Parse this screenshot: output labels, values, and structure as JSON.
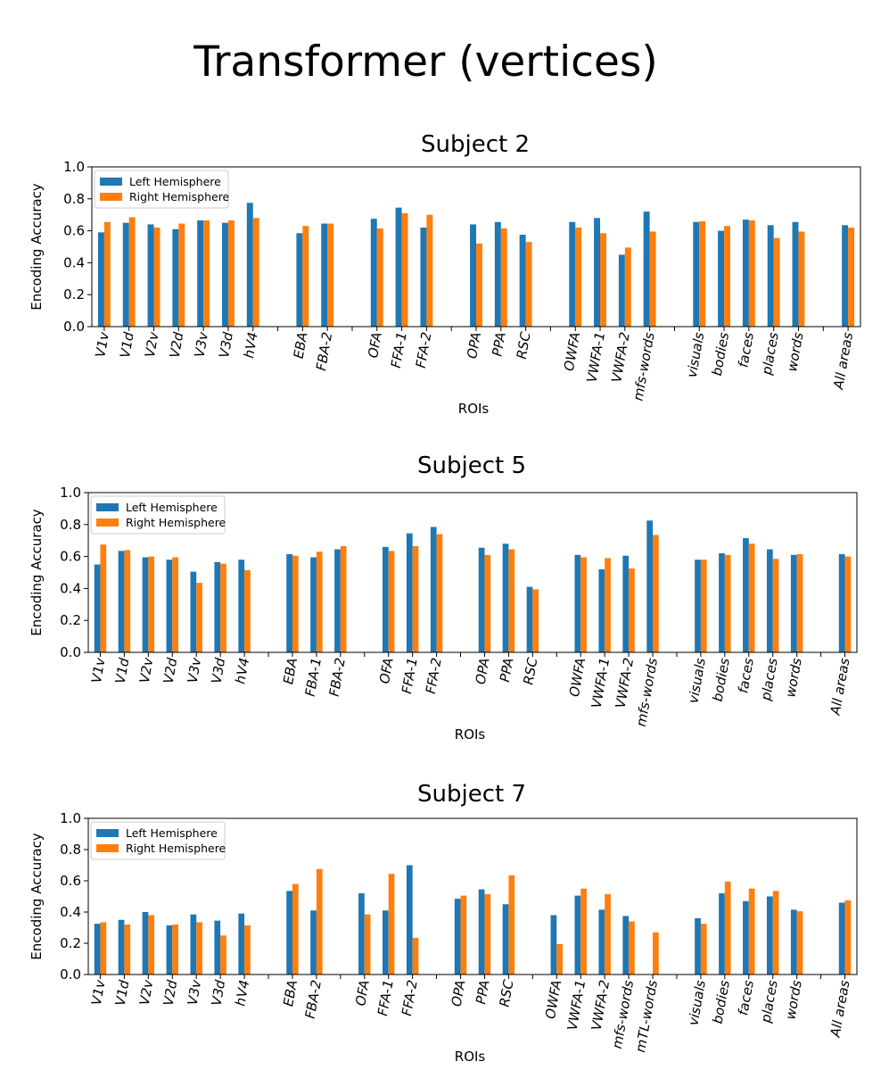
{
  "figure_title": "Transformer (vertices)",
  "colors": {
    "left": "#1f77b4",
    "right": "#ff7f0e"
  },
  "chart_data": [
    {
      "type": "bar",
      "title": "Subject 2",
      "xlabel": "ROIs",
      "ylabel": "Encoding Accuracy",
      "ylim": [
        0,
        1
      ],
      "yticks": [
        "0.0",
        "0.2",
        "0.4",
        "0.6",
        "0.8",
        "1.0"
      ],
      "legend_position": "top-left",
      "categories": [
        "V1v",
        "V1d",
        "V2v",
        "V2d",
        "V3v",
        "V3d",
        "hV4",
        "",
        "EBA",
        "FBA-2",
        "",
        "OFA",
        "FFA-1",
        "FFA-2",
        "",
        "OPA",
        "PPA",
        "RSC",
        "",
        "OWFA",
        "VWFA-1",
        "VWFA-2",
        "mfs-words",
        "",
        "visuals",
        "bodies",
        "faces",
        "places",
        "words",
        "",
        "All areas"
      ],
      "series": [
        {
          "name": "Left Hemisphere",
          "values": [
            0.59,
            0.65,
            0.64,
            0.61,
            0.665,
            0.65,
            0.775,
            null,
            0.585,
            0.645,
            null,
            0.675,
            0.745,
            0.62,
            null,
            0.64,
            0.655,
            0.575,
            null,
            0.655,
            0.68,
            0.45,
            0.72,
            null,
            0.655,
            0.6,
            0.67,
            0.635,
            0.655,
            null,
            0.635
          ]
        },
        {
          "name": "Right Hemisphere",
          "values": [
            0.655,
            0.685,
            0.62,
            0.645,
            0.665,
            0.665,
            0.68,
            null,
            0.63,
            0.645,
            null,
            0.615,
            0.71,
            0.7,
            null,
            0.52,
            0.615,
            0.53,
            null,
            0.62,
            0.585,
            0.495,
            0.595,
            null,
            0.66,
            0.63,
            0.665,
            0.555,
            0.595,
            null,
            0.62
          ]
        }
      ]
    },
    {
      "type": "bar",
      "title": "Subject 5",
      "xlabel": "ROIs",
      "ylabel": "Encoding Accuracy",
      "ylim": [
        0,
        1
      ],
      "yticks": [
        "0.0",
        "0.2",
        "0.4",
        "0.6",
        "0.8",
        "1.0"
      ],
      "legend_position": "top-left",
      "categories": [
        "V1v",
        "V1d",
        "V2v",
        "V2d",
        "V3v",
        "V3d",
        "hV4",
        "",
        "EBA",
        "FBA-1",
        "FBA-2",
        "",
        "OFA",
        "FFA-1",
        "FFA-2",
        "",
        "OPA",
        "PPA",
        "RSC",
        "",
        "OWFA",
        "VWFA-1",
        "VWFA-2",
        "mfs-words",
        "",
        "visuals",
        "bodies",
        "faces",
        "places",
        "words",
        "",
        "All areas"
      ],
      "series": [
        {
          "name": "Left Hemisphere",
          "values": [
            0.55,
            0.635,
            0.595,
            0.58,
            0.505,
            0.565,
            0.58,
            null,
            0.615,
            0.595,
            0.645,
            null,
            0.66,
            0.745,
            0.785,
            null,
            0.655,
            0.68,
            0.41,
            null,
            0.61,
            0.52,
            0.605,
            0.825,
            null,
            0.58,
            0.62,
            0.715,
            0.645,
            0.61,
            null,
            0.615
          ]
        },
        {
          "name": "Right Hemisphere",
          "values": [
            0.675,
            0.64,
            0.6,
            0.595,
            0.435,
            0.555,
            0.515,
            null,
            0.605,
            0.63,
            0.665,
            null,
            0.635,
            0.665,
            0.74,
            null,
            0.61,
            0.645,
            0.395,
            null,
            0.595,
            0.59,
            0.525,
            0.735,
            null,
            0.58,
            0.61,
            0.68,
            0.585,
            0.615,
            null,
            0.6
          ]
        }
      ]
    },
    {
      "type": "bar",
      "title": "Subject 7",
      "xlabel": "ROIs",
      "ylabel": "Encoding Accuracy",
      "ylim": [
        0,
        1
      ],
      "yticks": [
        "0.0",
        "0.2",
        "0.4",
        "0.6",
        "0.8",
        "1.0"
      ],
      "legend_position": "top-left",
      "categories": [
        "V1v",
        "V1d",
        "V2v",
        "V2d",
        "V3v",
        "V3d",
        "hV4",
        "",
        "EBA",
        "FBA-2",
        "",
        "OFA",
        "FFA-1",
        "FFA-2",
        "",
        "OPA",
        "PPA",
        "RSC",
        "",
        "OWFA",
        "VWFA-1",
        "VWFA-2",
        "mfs-words",
        "mTL-words",
        "",
        "visuals",
        "bodies",
        "faces",
        "places",
        "words",
        "",
        "All areas"
      ],
      "series": [
        {
          "name": "Left Hemisphere",
          "values": [
            0.325,
            0.35,
            0.4,
            0.315,
            0.385,
            0.345,
            0.39,
            null,
            0.535,
            0.41,
            null,
            0.52,
            0.41,
            0.7,
            null,
            0.485,
            0.545,
            0.45,
            null,
            0.38,
            0.505,
            0.415,
            0.375,
            null,
            null,
            0.36,
            0.52,
            0.47,
            0.5,
            0.415,
            null,
            0.46
          ]
        },
        {
          "name": "Right Hemisphere",
          "values": [
            0.335,
            0.32,
            0.38,
            0.32,
            0.335,
            0.25,
            0.315,
            null,
            0.58,
            0.675,
            null,
            0.385,
            0.645,
            0.235,
            null,
            0.505,
            0.515,
            0.635,
            null,
            0.195,
            0.55,
            0.515,
            0.34,
            0.27,
            null,
            0.325,
            0.595,
            0.55,
            0.535,
            0.405,
            null,
            0.475
          ]
        }
      ]
    }
  ]
}
